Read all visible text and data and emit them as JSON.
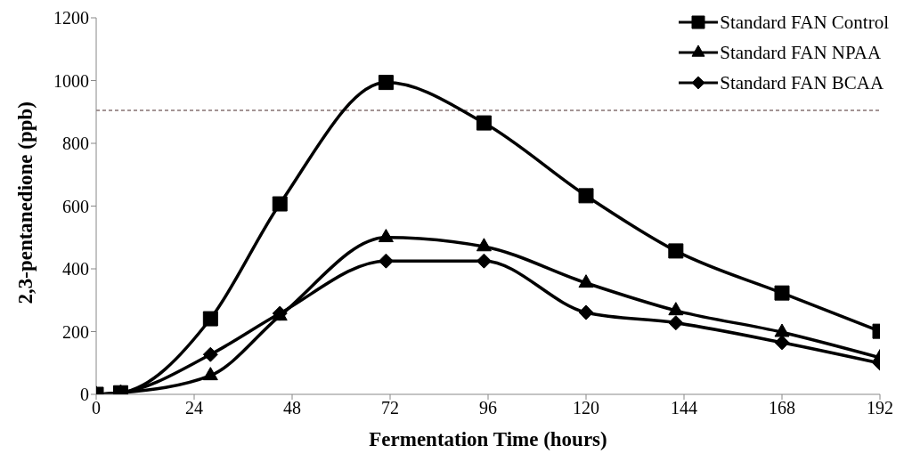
{
  "chart_data": {
    "type": "line",
    "xlabel": "Fermentation Time (hours)",
    "ylabel": "2,3-pentanedione (ppb)",
    "x": [
      0,
      6,
      28,
      45,
      71,
      95,
      120,
      142,
      168,
      192
    ],
    "series": [
      {
        "name": "Standard FAN Control",
        "color": "#000000",
        "marker": "square",
        "values": [
          0,
          5,
          241,
          607,
          994,
          865,
          633,
          457,
          323,
          201
        ]
      },
      {
        "name": "Standard FAN NPAA",
        "color": "#000000",
        "marker": "triangle",
        "values": [
          0,
          5,
          60,
          250,
          500,
          471,
          355,
          267,
          198,
          117
        ]
      },
      {
        "name": "Standard FAN BCAA",
        "color": "#000000",
        "marker": "diamond",
        "values": [
          0,
          5,
          127,
          258,
          425,
          425,
          261,
          228,
          165,
          99
        ]
      }
    ],
    "xlim": [
      0,
      192
    ],
    "xticks": [
      0,
      24,
      48,
      72,
      96,
      120,
      144,
      168,
      192
    ],
    "ylim": [
      0,
      1200
    ],
    "yticks": [
      0,
      200,
      400,
      600,
      800,
      1000,
      1200
    ],
    "ref_lines": [
      {
        "axis": "y",
        "value": 905,
        "color": "#4a2a2a",
        "line_style": "dashed"
      }
    ],
    "legend": "top right",
    "grid": false,
    "line_style": "solid"
  }
}
